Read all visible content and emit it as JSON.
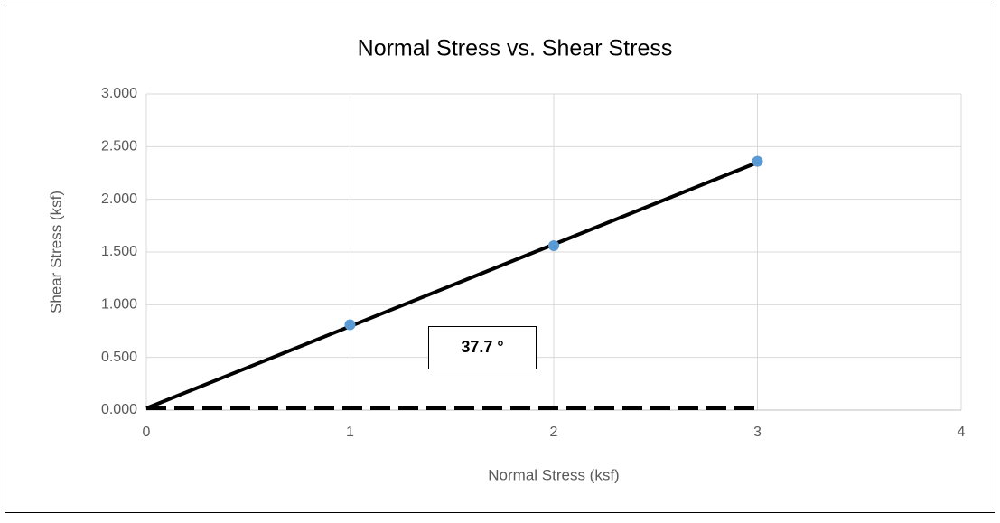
{
  "chart_data": {
    "type": "scatter",
    "title": "Normal Stress vs. Shear Stress",
    "x_label": "Normal Stress (ksf)",
    "y_label": "Shear Stress (ksf)",
    "xlim": [
      0,
      4
    ],
    "xticks": [
      0,
      1,
      2,
      3,
      4
    ],
    "ylim": [
      0,
      3
    ],
    "yticks": [
      {
        "value": 0,
        "label": "0.000"
      },
      {
        "value": 0.5,
        "label": "0.500"
      },
      {
        "value": 1,
        "label": "1.000"
      },
      {
        "value": 1.5,
        "label": "1.500"
      },
      {
        "value": 2,
        "label": "2.000"
      },
      {
        "value": 2.5,
        "label": "2.500"
      },
      {
        "value": 3,
        "label": "3.000"
      }
    ],
    "grid": true,
    "series": [
      {
        "color": "#5b9bd5",
        "marker": true,
        "x": [
          1,
          2,
          3
        ],
        "values": [
          0.81,
          1.56,
          2.36
        ]
      },
      {
        "color": "#000000",
        "line_style": "solid",
        "x": [
          0,
          3
        ],
        "values": [
          0.017,
          2.35
        ]
      },
      {
        "color": "#000000",
        "line_style": "dashed",
        "x": [
          0,
          3
        ],
        "values": [
          0.017,
          0.017
        ]
      }
    ],
    "annotations": [
      {
        "text": "37.7 °"
      }
    ]
  }
}
